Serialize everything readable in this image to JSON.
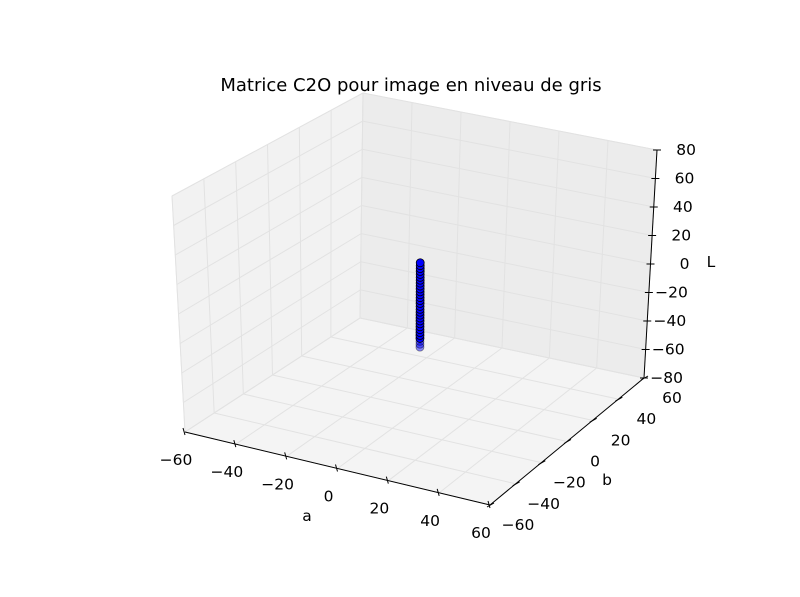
{
  "chart_data": {
    "type": "scatter",
    "projection": "3d",
    "title": "Matrice C2O pour image en niveau de gris",
    "xlabel": "a",
    "ylabel": "b",
    "zlabel": "L",
    "xlim": [
      -60,
      60
    ],
    "ylim": [
      -60,
      60
    ],
    "zlim": [
      -80,
      80
    ],
    "x_ticks": [
      -60,
      -40,
      -20,
      0,
      20,
      40,
      60
    ],
    "y_ticks": [
      -60,
      -40,
      -20,
      0,
      20,
      40,
      60
    ],
    "z_ticks": [
      -80,
      -60,
      -40,
      -20,
      0,
      20,
      40,
      60,
      80
    ],
    "x_tick_labels": [
      "−60",
      "−40",
      "−20",
      "0",
      "20",
      "40",
      "60"
    ],
    "y_tick_labels": [
      "−60",
      "−40",
      "−20",
      "0",
      "20",
      "40",
      "60"
    ],
    "z_tick_labels": [
      "−80",
      "−60",
      "−40",
      "−20",
      "0",
      "20",
      "40",
      "60",
      "80"
    ],
    "grid": true,
    "marker_color": "#0000ff",
    "marker_edge": "#000000",
    "series": [
      {
        "x": [
          0,
          0,
          0,
          0,
          0,
          0,
          0,
          0,
          0,
          0,
          0,
          0,
          0,
          0,
          0,
          0,
          0,
          0,
          0,
          0,
          0,
          0,
          0,
          0,
          0,
          0,
          0,
          0,
          0,
          0
        ],
        "y": [
          0,
          0,
          0,
          0,
          0,
          0,
          0,
          0,
          0,
          0,
          0,
          0,
          0,
          0,
          0,
          0,
          0,
          0,
          0,
          0,
          0,
          0,
          0,
          0,
          0,
          0,
          0,
          0,
          0,
          0
        ],
        "z": [
          -38,
          -36,
          -34,
          -32,
          -30,
          -28,
          -26,
          -24,
          -22,
          -20,
          -18,
          -16,
          -14,
          -12,
          -10,
          -8,
          -6,
          -4,
          -2,
          0,
          2,
          4,
          6,
          8,
          10,
          12,
          14,
          16,
          18,
          20
        ]
      }
    ]
  }
}
